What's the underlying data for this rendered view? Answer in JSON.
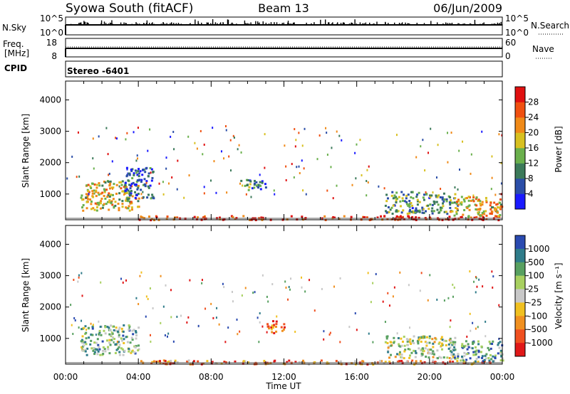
{
  "header": {
    "title": "Syowa South (fitACF)",
    "beam": "Beam 13",
    "date": "06/Jun/2009"
  },
  "noise_panel": {
    "left_label": "N.Sky",
    "right_label": "N.Search",
    "left_ticks": [
      "10^5",
      "10^0"
    ],
    "right_ticks": [
      "10^5",
      "10^0"
    ]
  },
  "freq_panel": {
    "left_label_line1": "Freq.",
    "left_label_line2": "[MHz]",
    "right_label": "Nave",
    "left_ticks": [
      "18",
      "8"
    ],
    "right_ticks": [
      "60",
      "0"
    ]
  },
  "cpid": {
    "label": "CPID",
    "value": "Stereo -6401"
  },
  "axes": {
    "xlabel": "Time UT",
    "ylabel": "Slant Range [km]",
    "x_ticks": [
      "00:00",
      "04:00",
      "08:00",
      "12:00",
      "16:00",
      "20:00",
      "00:00"
    ],
    "y_ticks": [
      "1000",
      "2000",
      "3000",
      "4000"
    ],
    "x_range_hours": [
      0,
      24
    ],
    "y_range_km": [
      180,
      4600
    ]
  },
  "colorbars": {
    "power": {
      "label": "Power [dB]",
      "ticks": [
        "4",
        "8",
        "12",
        "16",
        "20",
        "24",
        "28"
      ],
      "colors": [
        "#1a1aff",
        "#2b4ea8",
        "#3c7a5a",
        "#6ab04c",
        "#d8c020",
        "#f08a18",
        "#f05010",
        "#e01010"
      ]
    },
    "velocity": {
      "label": "Velocity [m s⁻¹]",
      "ticks": [
        "1000",
        "500",
        "100",
        "25",
        "-25",
        "-100",
        "-500",
        "-1000"
      ],
      "colors": [
        "#2a4ab0",
        "#2f7c8a",
        "#58a060",
        "#a8d060",
        "#c8c8c8",
        "#f0c020",
        "#f09020",
        "#f05020",
        "#e01818"
      ]
    }
  },
  "chart_data": [
    {
      "type": "heatmap",
      "title": "Power",
      "xlabel": "Time UT",
      "ylabel": "Slant Range [km]",
      "x_range": [
        0,
        24
      ],
      "y_range": [
        180,
        4600
      ],
      "regions": [
        {
          "t": [
            0.8,
            4.0
          ],
          "r": [
            500,
            1450
          ],
          "level": 0.55
        },
        {
          "t": [
            3.2,
            4.8
          ],
          "r": [
            850,
            1900
          ],
          "level": 0.2
        },
        {
          "t": [
            4.0,
            23.8
          ],
          "r": [
            200,
            330
          ],
          "level": 0.9
        },
        {
          "t": [
            9.5,
            11.0
          ],
          "r": [
            1150,
            1500
          ],
          "level": 0.3
        },
        {
          "t": [
            17.5,
            21.5
          ],
          "r": [
            400,
            1100
          ],
          "level": 0.35
        },
        {
          "t": [
            21.0,
            24.0
          ],
          "r": [
            300,
            950
          ],
          "level": 0.6
        }
      ]
    },
    {
      "type": "heatmap",
      "title": "Velocity",
      "xlabel": "Time UT",
      "ylabel": "Slant Range [km]",
      "x_range": [
        0,
        24
      ],
      "y_range": [
        180,
        4600
      ],
      "regions": [
        {
          "t": [
            0.8,
            4.0
          ],
          "r": [
            500,
            1450
          ],
          "level": 0.35
        },
        {
          "t": [
            4.0,
            23.8
          ],
          "r": [
            200,
            330
          ],
          "level": 0.75
        },
        {
          "t": [
            11.0,
            12.0
          ],
          "r": [
            1200,
            1600
          ],
          "level": 0.85
        },
        {
          "t": [
            17.5,
            21.5
          ],
          "r": [
            400,
            1100
          ],
          "level": 0.45
        },
        {
          "t": [
            21.0,
            24.0
          ],
          "r": [
            300,
            950
          ],
          "level": 0.3
        }
      ]
    }
  ]
}
